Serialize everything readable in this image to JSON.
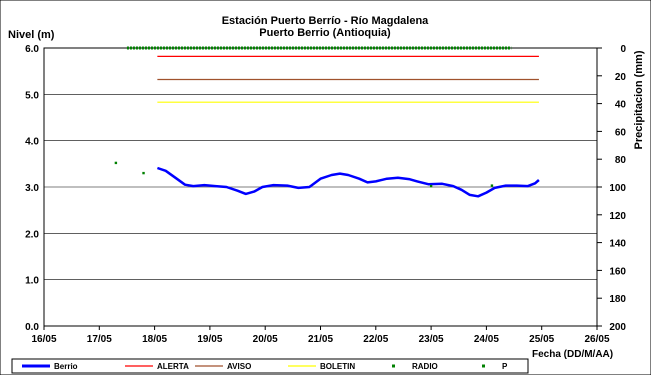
{
  "chart_data": {
    "type": "line",
    "title": "Estación Puerto Berrío - Río Magdalena",
    "subtitle": "Puerto Berrio (Antioquia)",
    "ylabel": "Nivel (m)",
    "y2label": "Precipitacion (mm)",
    "xlabel": "Fecha (DD/M/AA)",
    "ylim": [
      0,
      6
    ],
    "y2lim": [
      0,
      200
    ],
    "y2_inverted": true,
    "xlim_days": [
      16,
      26
    ],
    "grid": "horizontal",
    "legend_position": "bottom",
    "x_ticks": [
      "16/05",
      "17/05",
      "18/05",
      "19/05",
      "20/05",
      "21/05",
      "22/05",
      "23/05",
      "24/05",
      "25/05",
      "26/05"
    ],
    "y_ticks": [
      "0.0",
      "1.0",
      "2.0",
      "3.0",
      "4.0",
      "5.0",
      "6.0"
    ],
    "y2_ticks": [
      "0",
      "20",
      "40",
      "60",
      "80",
      "100",
      "120",
      "140",
      "160",
      "180",
      "200"
    ],
    "series": [
      {
        "name": "Berrio",
        "color": "#0000ff",
        "points": [
          [
            18.05,
            3.41
          ],
          [
            18.2,
            3.35
          ],
          [
            18.4,
            3.18
          ],
          [
            18.55,
            3.05
          ],
          [
            18.7,
            3.02
          ],
          [
            18.9,
            3.04
          ],
          [
            19.1,
            3.02
          ],
          [
            19.3,
            3.0
          ],
          [
            19.5,
            2.92
          ],
          [
            19.65,
            2.85
          ],
          [
            19.8,
            2.9
          ],
          [
            19.95,
            3.0
          ],
          [
            20.15,
            3.04
          ],
          [
            20.4,
            3.03
          ],
          [
            20.6,
            2.98
          ],
          [
            20.8,
            3.0
          ],
          [
            21.0,
            3.18
          ],
          [
            21.2,
            3.26
          ],
          [
            21.35,
            3.29
          ],
          [
            21.5,
            3.26
          ],
          [
            21.7,
            3.18
          ],
          [
            21.85,
            3.1
          ],
          [
            22.0,
            3.12
          ],
          [
            22.2,
            3.18
          ],
          [
            22.4,
            3.2
          ],
          [
            22.6,
            3.17
          ],
          [
            22.75,
            3.12
          ],
          [
            22.95,
            3.06
          ],
          [
            23.2,
            3.07
          ],
          [
            23.4,
            3.02
          ],
          [
            23.55,
            2.94
          ],
          [
            23.7,
            2.83
          ],
          [
            23.85,
            2.8
          ],
          [
            24.0,
            2.88
          ],
          [
            24.15,
            2.98
          ],
          [
            24.35,
            3.03
          ],
          [
            24.55,
            3.03
          ],
          [
            24.75,
            3.02
          ],
          [
            24.88,
            3.08
          ],
          [
            24.95,
            3.15
          ]
        ]
      },
      {
        "name": "ALERTA",
        "color": "#ff0000",
        "value": 5.82,
        "x_range": [
          18.05,
          24.95
        ]
      },
      {
        "name": "AVISO",
        "color": "#a0522d",
        "value": 5.32,
        "x_range": [
          18.05,
          24.95
        ]
      },
      {
        "name": "BOLETIN",
        "color": "#ffff00",
        "value": 4.83,
        "x_range": [
          18.05,
          24.95
        ]
      },
      {
        "name": "RADIO",
        "color": "#008000",
        "points": [
          [
            17.3,
            3.52
          ],
          [
            17.8,
            3.3
          ],
          [
            23.0,
            3.02
          ],
          [
            24.1,
            3.03
          ]
        ]
      },
      {
        "name": "P",
        "color": "#008000",
        "precip_mm": 0,
        "x_range": [
          17.5,
          24.45
        ]
      }
    ]
  }
}
